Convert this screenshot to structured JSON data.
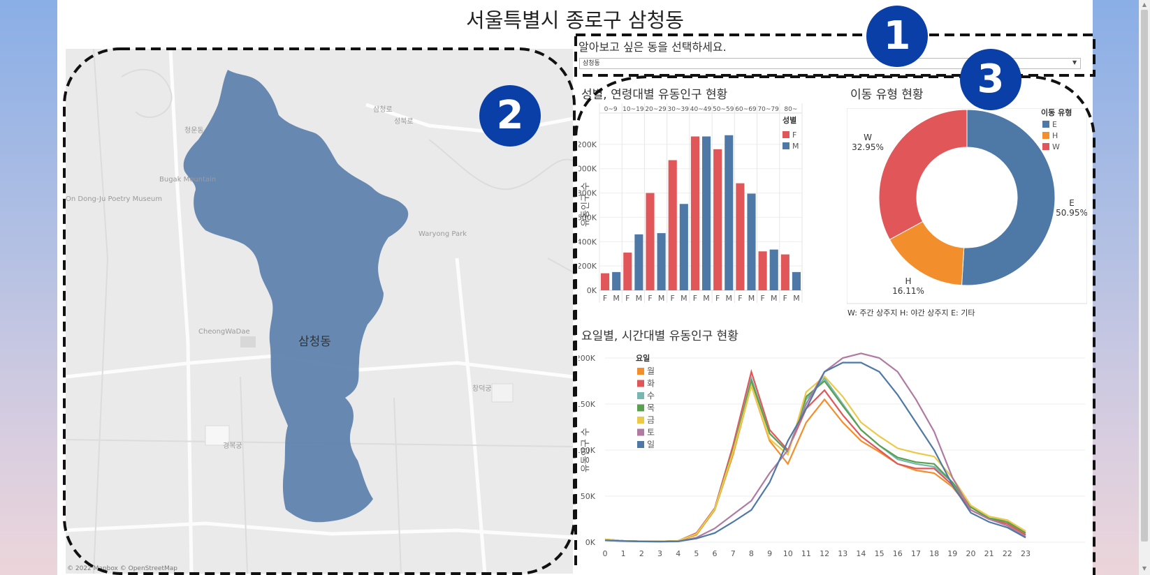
{
  "page": {
    "title": "서울특별시 종로구 삼청동"
  },
  "filter": {
    "label": "알아보고 싶은 동을 선택하세요.",
    "selected": "삼청동"
  },
  "badges": [
    "1",
    "2",
    "3"
  ],
  "map": {
    "region_label": "삼청동",
    "attribution": "© 2022 Mapbox © OpenStreetMap",
    "region_color": "#5b80ab",
    "places": [
      "Bugak Mountain",
      "On Dong-Ju Poetry Museum",
      "Waryong Park",
      "CheongWaDae",
      "경복궁",
      "삼청로",
      "성북로",
      "창덕궁"
    ]
  },
  "colors": {
    "F": "#e15759",
    "M": "#4e79a7",
    "E": "#4e79a7",
    "H": "#f28e2b",
    "W": "#e15759"
  },
  "chart_data": [
    {
      "type": "bar",
      "title": "성별, 연령대별 유동인구 현황",
      "ylabel": "유동인구 수",
      "legend_title": "성별",
      "age_groups": [
        "0~9",
        "10~19",
        "20~29",
        "30~39",
        "40~49",
        "50~59",
        "60~69",
        "70~79",
        "80~"
      ],
      "sexes": [
        "F",
        "M"
      ],
      "series": [
        {
          "name": "F",
          "values": [
            140000,
            310000,
            800000,
            1070000,
            1265000,
            1160000,
            880000,
            320000,
            295000
          ]
        },
        {
          "name": "M",
          "values": [
            150000,
            460000,
            470000,
            710000,
            1265000,
            1275000,
            795000,
            335000,
            150000
          ]
        }
      ],
      "yticks": [
        "0K",
        "200K",
        "400K",
        "600K",
        "800K",
        "1000K",
        "1200K"
      ],
      "ylim": [
        0,
        1400000
      ]
    },
    {
      "type": "pie",
      "title": "이동 유형 현황",
      "legend_title": "이동 유형",
      "slices": [
        {
          "name": "E",
          "value": 50.95,
          "label": "E\n50.95%"
        },
        {
          "name": "H",
          "value": 16.11,
          "label": "H\n16.11%"
        },
        {
          "name": "W",
          "value": 32.95,
          "label": "W\n32.95%"
        }
      ],
      "note": "W: 주간 상주지     H: 야간 상주지     E: 기타"
    },
    {
      "type": "line",
      "title": "요일별, 시간대별 유동인구 현황",
      "ylabel": "유동인구 수",
      "legend_title": "요일",
      "x": [
        0,
        1,
        2,
        3,
        4,
        5,
        6,
        7,
        8,
        9,
        10,
        11,
        12,
        13,
        14,
        15,
        16,
        17,
        18,
        19,
        20,
        21,
        22,
        23
      ],
      "yticks": [
        "0K",
        "50K",
        "100K",
        "150K",
        "200K"
      ],
      "ylim": [
        0,
        200000
      ],
      "series": [
        {
          "name": "월",
          "color": "#f28e2b",
          "values": [
            3000,
            1500,
            1000,
            800,
            1500,
            8000,
            35000,
            95000,
            170000,
            110000,
            85000,
            130000,
            155000,
            130000,
            110000,
            98000,
            85000,
            78000,
            75000,
            60000,
            35000,
            25000,
            20000,
            8000
          ]
        },
        {
          "name": "화",
          "color": "#e15759",
          "values": [
            3000,
            1500,
            1000,
            800,
            1500,
            10000,
            37000,
            105000,
            185000,
            122000,
            100000,
            145000,
            165000,
            138000,
            115000,
            100000,
            85000,
            80000,
            80000,
            62000,
            35000,
            25000,
            20000,
            8000
          ]
        },
        {
          "name": "수",
          "color": "#76b7b2",
          "values": [
            3000,
            1500,
            1000,
            800,
            1500,
            9000,
            36000,
            100000,
            178000,
            118000,
            98000,
            155000,
            178000,
            150000,
            122000,
            105000,
            90000,
            85000,
            82000,
            65000,
            38000,
            26000,
            24000,
            10000
          ]
        },
        {
          "name": "목",
          "color": "#59a14f",
          "values": [
            3000,
            1500,
            1000,
            800,
            1500,
            9000,
            36000,
            100000,
            175000,
            118000,
            98000,
            158000,
            175000,
            148000,
            122000,
            105000,
            92000,
            87000,
            85000,
            65000,
            38000,
            26000,
            22000,
            10000
          ]
        },
        {
          "name": "금",
          "color": "#edc948",
          "values": [
            3000,
            1500,
            1000,
            800,
            1500,
            9000,
            36000,
            98000,
            170000,
            112000,
            95000,
            163000,
            180000,
            158000,
            130000,
            115000,
            102000,
            97000,
            93000,
            70000,
            40000,
            28000,
            24000,
            12000
          ]
        },
        {
          "name": "토",
          "color": "#b07aa1",
          "values": [
            2000,
            1200,
            800,
            700,
            1000,
            5000,
            15000,
            30000,
            45000,
            75000,
            100000,
            150000,
            185000,
            200000,
            205000,
            200000,
            185000,
            155000,
            120000,
            70000,
            35000,
            25000,
            18000,
            6000
          ]
        },
        {
          "name": "일",
          "color": "#4e79a7",
          "values": [
            2000,
            1200,
            800,
            700,
            800,
            4000,
            10000,
            22000,
            35000,
            65000,
            110000,
            145000,
            185000,
            195000,
            195000,
            185000,
            160000,
            130000,
            100000,
            62000,
            32000,
            22000,
            16000,
            5000
          ]
        }
      ]
    }
  ]
}
